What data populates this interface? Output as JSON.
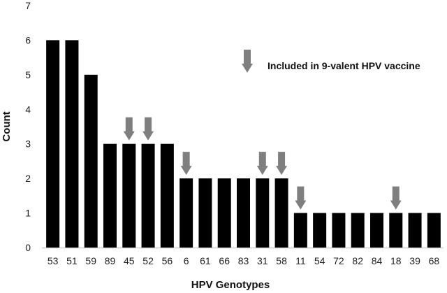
{
  "chart_data": {
    "type": "bar",
    "title": "",
    "xlabel": "HPV Genotypes",
    "ylabel": "Count",
    "ylim": [
      0,
      7
    ],
    "yticks": [
      0,
      1,
      2,
      3,
      4,
      5,
      6,
      7
    ],
    "categories": [
      "53",
      "51",
      "59",
      "89",
      "45",
      "52",
      "56",
      "6",
      "61",
      "66",
      "83",
      "31",
      "58",
      "11",
      "54",
      "72",
      "82",
      "84",
      "18",
      "39",
      "68"
    ],
    "values": [
      6,
      6,
      5,
      3,
      3,
      3,
      3,
      2,
      2,
      2,
      2,
      2,
      2,
      1,
      1,
      1,
      1,
      1,
      1,
      1,
      1
    ],
    "marked_categories": [
      "45",
      "52",
      "6",
      "31",
      "58",
      "11",
      "18"
    ],
    "legend": {
      "label": "Included in 9-valent HPV vaccine",
      "marker": "arrow-down-icon",
      "placement": "top-right"
    },
    "grid": false,
    "colors": {
      "bar": "#000000",
      "arrow": "#7f7f7f",
      "axis": "#cfcfcf"
    }
  }
}
